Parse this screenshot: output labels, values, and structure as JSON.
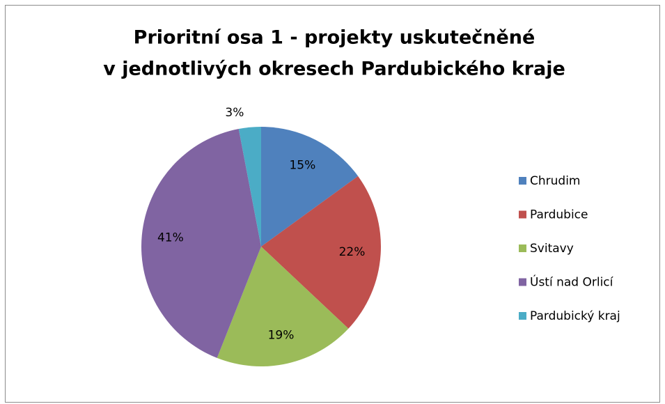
{
  "chart_data": {
    "type": "pie",
    "title": [
      "Prioritní osa 1 - projekty uskutečněné",
      "v jednotlivých okresech Pardubického kraje"
    ],
    "categories": [
      "Chrudim",
      "Pardubice",
      "Svitavy",
      "Ústí nad Orlicí",
      "Pardubický kraj"
    ],
    "values": [
      15,
      22,
      19,
      41,
      3
    ],
    "value_labels": [
      "15%",
      "22%",
      "19%",
      "41%",
      "3%"
    ],
    "colors": [
      "#4f81bd",
      "#c0504d",
      "#9bbb59",
      "#8064a2",
      "#4bacc6"
    ],
    "legend": "right"
  }
}
